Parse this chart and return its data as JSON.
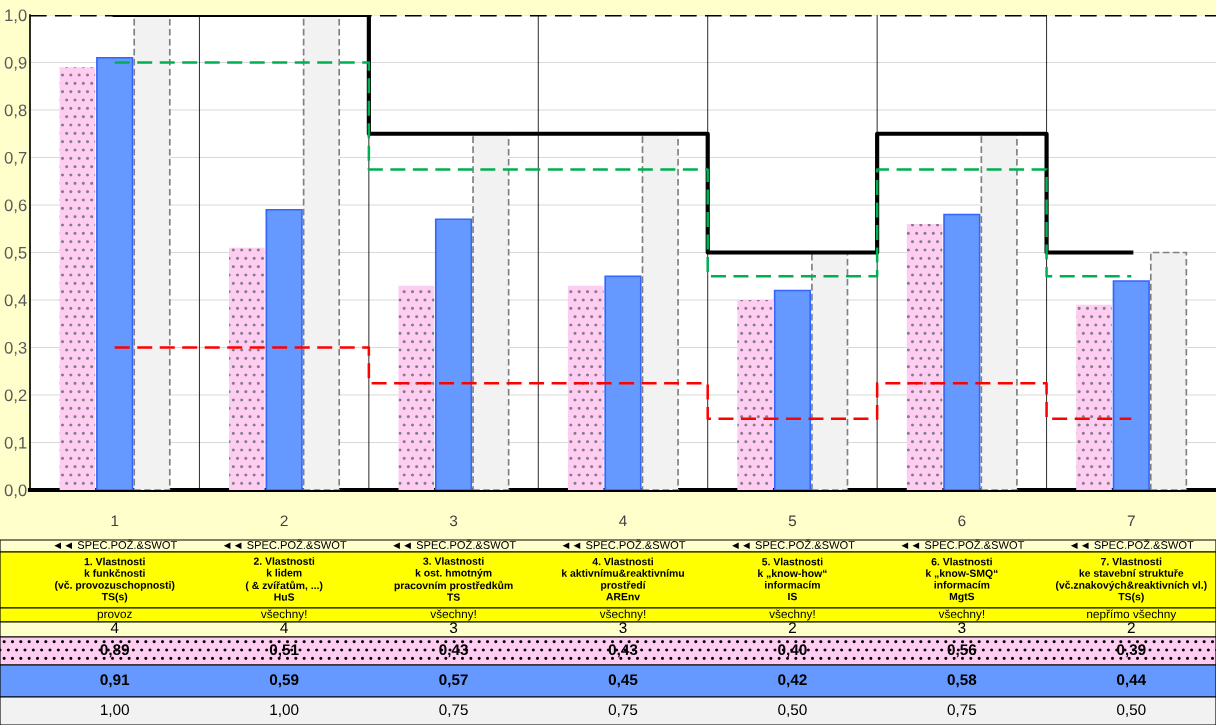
{
  "chart_data": {
    "type": "bar",
    "categories": [
      "1",
      "2",
      "3",
      "4",
      "5",
      "6",
      "7"
    ],
    "series": [
      {
        "color": "#ffccf2",
        "values": [
          0.89,
          0.51,
          0.43,
          0.43,
          0.4,
          0.56,
          0.39
        ],
        "value_labels": [
          "0,89",
          "0,51",
          "0,43",
          "0,43",
          "0,40",
          "0,56",
          "0,39"
        ]
      },
      {
        "color": "#6699ff",
        "values": [
          0.91,
          0.59,
          0.57,
          0.45,
          0.42,
          0.58,
          0.44
        ],
        "value_labels": [
          "0,91",
          "0,59",
          "0,57",
          "0,45",
          "0,42",
          "0,58",
          "0,44"
        ]
      },
      {
        "color": "#f2f2f2",
        "values": [
          1.0,
          1.0,
          0.75,
          0.75,
          0.5,
          0.75,
          0.5
        ],
        "value_labels": [
          "1,00",
          "1,00",
          "0,75",
          "0,75",
          "0,50",
          "0,75",
          "0,50"
        ]
      },
      {
        "type": "step",
        "color": "#000000",
        "line_style": "solid",
        "values": [
          1.0,
          1.0,
          0.75,
          0.75,
          0.5,
          0.75,
          0.5
        ]
      },
      {
        "type": "step",
        "color": "#00b050",
        "line_style": "dashed",
        "values": [
          0.9,
          0.9,
          0.675,
          0.675,
          0.45,
          0.675,
          0.45
        ]
      },
      {
        "type": "step",
        "color": "#ff0000",
        "line_style": "dashed",
        "values": [
          0.3,
          0.3,
          0.225,
          0.225,
          0.15,
          0.225,
          0.15
        ]
      }
    ],
    "ylim": [
      0,
      1
    ],
    "yticks": [
      {
        "value": 0,
        "label": "0,0"
      },
      {
        "value": 0.1,
        "label": "0,1"
      },
      {
        "value": 0.2,
        "label": "0,2"
      },
      {
        "value": 0.3,
        "label": "0,3"
      },
      {
        "value": 0.4,
        "label": "0,4"
      },
      {
        "value": 0.5,
        "label": "0,5"
      },
      {
        "value": 0.6,
        "label": "0,6"
      },
      {
        "value": 0.7,
        "label": "0,7"
      },
      {
        "value": 0.8,
        "label": "0,8"
      },
      {
        "value": 0.9,
        "label": "0,9"
      },
      {
        "value": 1.0,
        "label": "1,0"
      }
    ],
    "ref_lines": [
      {
        "axis": "y",
        "value": 1.0,
        "color": "#000000",
        "line_style": "dashed"
      }
    ],
    "grid": "y",
    "legend": false,
    "annotations": [
      "◄◄ SPEC.POŽ.&SWOT",
      "◄◄ SPEC.POŽ.&SWOT",
      "◄◄ SPEC.POŽ.&SWOT",
      "◄◄ SPEC.POŽ.&SWOT",
      "◄◄ SPEC.POŽ.&SWOT",
      "◄◄ SPEC.POŽ.&SWOT",
      "◄◄ SPEC.POŽ.&SWOT",
      "1. Vlastnosti\nk funkčnosti\n(vč. provozuschopnosti)\nTS(s)",
      "2. Vlastnosti\nk lidem\n( & zvířatům, ...)\nHuS",
      "3. Vlastnosti\nk ost. hmotným\npracovním prostředkům\nTS",
      "4. Vlastnosti\nk aktivnímu&reaktivnímu\nprostředí\nAREnv",
      "5. Vlastnosti\nk „know-how“\ninformacím\nIS",
      "6. Vlastnosti\nk „know-SMQ“\ninformacím\nMgtS",
      "7. Vlastnosti\nke stavební struktuře\n(vč.znakových&reaktivních vl.)\nTS(s)",
      "provoz",
      "všechny!",
      "všechny!",
      "všechny!",
      "všechny!",
      "všechny!",
      "nepřímo všechny",
      "4",
      "4",
      "3",
      "3",
      "2",
      "3",
      "2"
    ]
  }
}
